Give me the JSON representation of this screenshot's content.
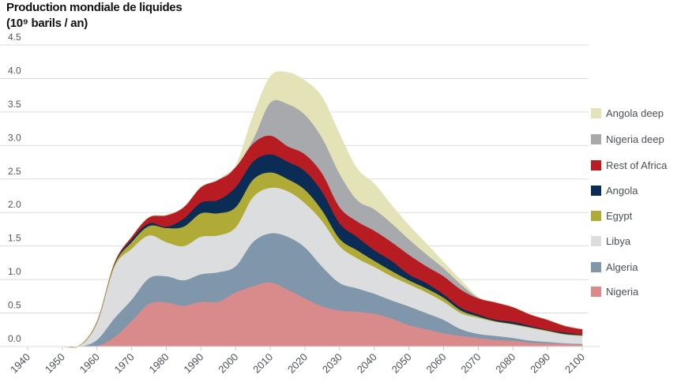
{
  "title_line1": "Production mondiale de liquides",
  "title_line2": "(10⁹ barils / an)",
  "chart_data": {
    "type": "area",
    "stacked": true,
    "title": "Production mondiale de liquides (10⁹ barils / an)",
    "xlabel": "",
    "ylabel": "",
    "xlim": [
      1940,
      2100
    ],
    "ylim": [
      0,
      4.5
    ],
    "grid": true,
    "legend_position": "right",
    "y_ticks": [
      "0.0",
      "0.5",
      "1.0",
      "1.5",
      "2.0",
      "2.5",
      "3.0",
      "3.5",
      "4.0",
      "4.5"
    ],
    "x_ticks": [
      "1940",
      "1950",
      "1960",
      "1970",
      "1980",
      "1990",
      "2000",
      "2010",
      "2020",
      "2030",
      "2040",
      "2050",
      "2060",
      "2070",
      "2080",
      "2090",
      "2100"
    ],
    "x": [
      1950,
      1955,
      1960,
      1965,
      1970,
      1975,
      1980,
      1985,
      1990,
      1995,
      2000,
      2005,
      2010,
      2015,
      2020,
      2025,
      2030,
      2035,
      2040,
      2045,
      2050,
      2055,
      2060,
      2065,
      2070,
      2075,
      2080,
      2085,
      2090,
      2095,
      2100
    ],
    "series": [
      {
        "name": "Nigeria",
        "color": "#d98b8b",
        "values": [
          0,
          0,
          0.01,
          0.14,
          0.38,
          0.64,
          0.66,
          0.61,
          0.67,
          0.67,
          0.81,
          0.9,
          0.96,
          0.85,
          0.72,
          0.6,
          0.54,
          0.52,
          0.49,
          0.42,
          0.32,
          0.26,
          0.2,
          0.16,
          0.13,
          0.1,
          0.09,
          0.06,
          0.05,
          0.04,
          0.03
        ]
      },
      {
        "name": "Algeria",
        "color": "#7f96ab",
        "values": [
          0,
          0,
          0.09,
          0.28,
          0.32,
          0.38,
          0.39,
          0.38,
          0.41,
          0.44,
          0.39,
          0.66,
          0.73,
          0.79,
          0.76,
          0.59,
          0.41,
          0.35,
          0.3,
          0.27,
          0.28,
          0.24,
          0.2,
          0.1,
          0.06,
          0.06,
          0.04,
          0.03,
          0.02,
          0.01,
          0.01
        ]
      },
      {
        "name": "Libya",
        "color": "#dcdddf",
        "values": [
          0,
          0.01,
          0.25,
          0.77,
          0.76,
          0.64,
          0.51,
          0.51,
          0.56,
          0.55,
          0.58,
          0.67,
          0.68,
          0.68,
          0.66,
          0.68,
          0.55,
          0.45,
          0.4,
          0.36,
          0.33,
          0.31,
          0.27,
          0.24,
          0.24,
          0.21,
          0.2,
          0.19,
          0.16,
          0.13,
          0.12
        ]
      },
      {
        "name": "Egypt",
        "color": "#b0ab36",
        "values": [
          0,
          0.01,
          0.02,
          0.03,
          0.1,
          0.14,
          0.21,
          0.29,
          0.35,
          0.33,
          0.3,
          0.26,
          0.23,
          0.18,
          0.2,
          0.16,
          0.11,
          0.12,
          0.09,
          0.08,
          0.06,
          0.06,
          0.06,
          0.04,
          0.02,
          0.01,
          0.01,
          0.01,
          0.01,
          0.01,
          0.01
        ]
      },
      {
        "name": "Angola",
        "color": "#0b2d55",
        "values": [
          0,
          0,
          0,
          0.01,
          0.04,
          0.04,
          0.02,
          0.12,
          0.16,
          0.2,
          0.3,
          0.27,
          0.27,
          0.26,
          0.28,
          0.28,
          0.23,
          0.2,
          0.16,
          0.15,
          0.09,
          0.08,
          0.05,
          0.04,
          0.03,
          0.02,
          0.03,
          0.02,
          0.01,
          0.02,
          0.01
        ]
      },
      {
        "name": "Rest of Africa",
        "color": "#b81c23",
        "values": [
          0,
          0,
          0.01,
          0.02,
          0.04,
          0.09,
          0.17,
          0.17,
          0.23,
          0.3,
          0.3,
          0.27,
          0.28,
          0.23,
          0.25,
          0.27,
          0.24,
          0.23,
          0.29,
          0.28,
          0.29,
          0.25,
          0.27,
          0.27,
          0.24,
          0.26,
          0.22,
          0.17,
          0.15,
          0.1,
          0.08
        ]
      },
      {
        "name": "Nigeria deep",
        "color": "#a7a9ad",
        "values": [
          0,
          0,
          0,
          0,
          0,
          0,
          0,
          0,
          0,
          0,
          0,
          0.06,
          0.49,
          0.63,
          0.59,
          0.53,
          0.5,
          0.32,
          0.32,
          0.28,
          0.23,
          0.18,
          0.12,
          0.08,
          0.01,
          0,
          0,
          0,
          0,
          0,
          0
        ]
      },
      {
        "name": "Angola deep",
        "color": "#e4e3b8",
        "values": [
          0,
          0,
          0,
          0,
          0,
          0,
          0,
          0,
          0,
          0,
          0.02,
          0.35,
          0.39,
          0.47,
          0.51,
          0.61,
          0.59,
          0.47,
          0.38,
          0.27,
          0.21,
          0.16,
          0.09,
          0.06,
          0.01,
          0,
          0,
          0,
          0,
          0,
          0
        ]
      }
    ]
  }
}
